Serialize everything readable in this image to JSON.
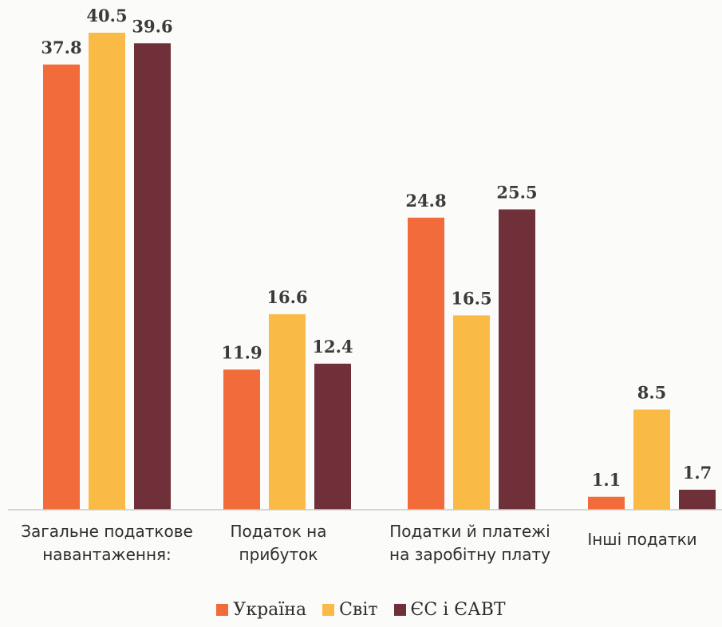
{
  "chart_data": {
    "type": "bar",
    "categories": [
      "Загальне податкове навантаження:",
      "Податок на прибуток",
      "Податки й платежі на заробітну плату",
      "Інші податки"
    ],
    "series": [
      {
        "name": "Україна",
        "color": "#f26b3a",
        "values": [
          37.8,
          11.9,
          24.8,
          1.1
        ]
      },
      {
        "name": "Світ",
        "color": "#f9bb46",
        "values": [
          40.5,
          16.6,
          16.5,
          8.5
        ]
      },
      {
        "name": "ЄС і ЄАВТ",
        "color": "#70303a",
        "values": [
          39.6,
          12.4,
          25.5,
          1.7
        ]
      }
    ],
    "title": "",
    "xlabel": "",
    "ylabel": "",
    "ylim": [
      0,
      40.5
    ],
    "grid": false,
    "legend": "bottom-center",
    "data_labels": true
  }
}
